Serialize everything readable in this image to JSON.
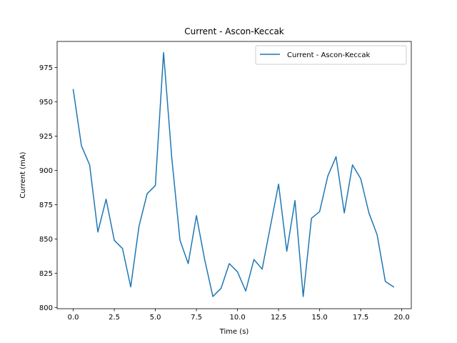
{
  "chart_data": {
    "type": "line",
    "title": "Current - Ascon-Keccak",
    "xlabel": "Time (s)",
    "ylabel": "Current (mA)",
    "xlim": [
      -0.98,
      20.58
    ],
    "ylim": [
      799.1,
      994.1
    ],
    "xticks": [
      0.0,
      2.5,
      5.0,
      7.5,
      10.0,
      12.5,
      15.0,
      17.5,
      20.0
    ],
    "xtick_labels": [
      "0.0",
      "2.5",
      "5.0",
      "7.5",
      "10.0",
      "12.5",
      "15.0",
      "17.5",
      "20.0"
    ],
    "yticks": [
      800,
      825,
      850,
      875,
      900,
      925,
      950,
      975
    ],
    "ytick_labels": [
      "800",
      "825",
      "850",
      "875",
      "900",
      "925",
      "950",
      "975"
    ],
    "grid": false,
    "legend_position": "top-right",
    "series": [
      {
        "name": "Current - Ascon-Keccak",
        "color": "#1f77b4",
        "x": [
          0.0,
          0.5,
          1.0,
          1.5,
          2.0,
          2.5,
          3.0,
          3.5,
          4.0,
          4.5,
          5.0,
          5.5,
          6.0,
          6.5,
          7.0,
          7.5,
          8.0,
          8.5,
          9.0,
          9.5,
          10.0,
          10.5,
          11.0,
          11.5,
          12.0,
          12.5,
          13.0,
          13.5,
          14.0,
          14.5,
          15.0,
          15.5,
          16.0,
          16.5,
          17.0,
          17.5,
          18.0,
          18.5,
          19.0,
          19.5
        ],
        "values": [
          959,
          918,
          904,
          855,
          879,
          849,
          843,
          815,
          859,
          883,
          889,
          986,
          909,
          849,
          832,
          867,
          835,
          808,
          814,
          832,
          826,
          812,
          835,
          828,
          859,
          890,
          841,
          878,
          808,
          865,
          870,
          896,
          910,
          869,
          904,
          894,
          869,
          853,
          819,
          815
        ]
      }
    ]
  }
}
